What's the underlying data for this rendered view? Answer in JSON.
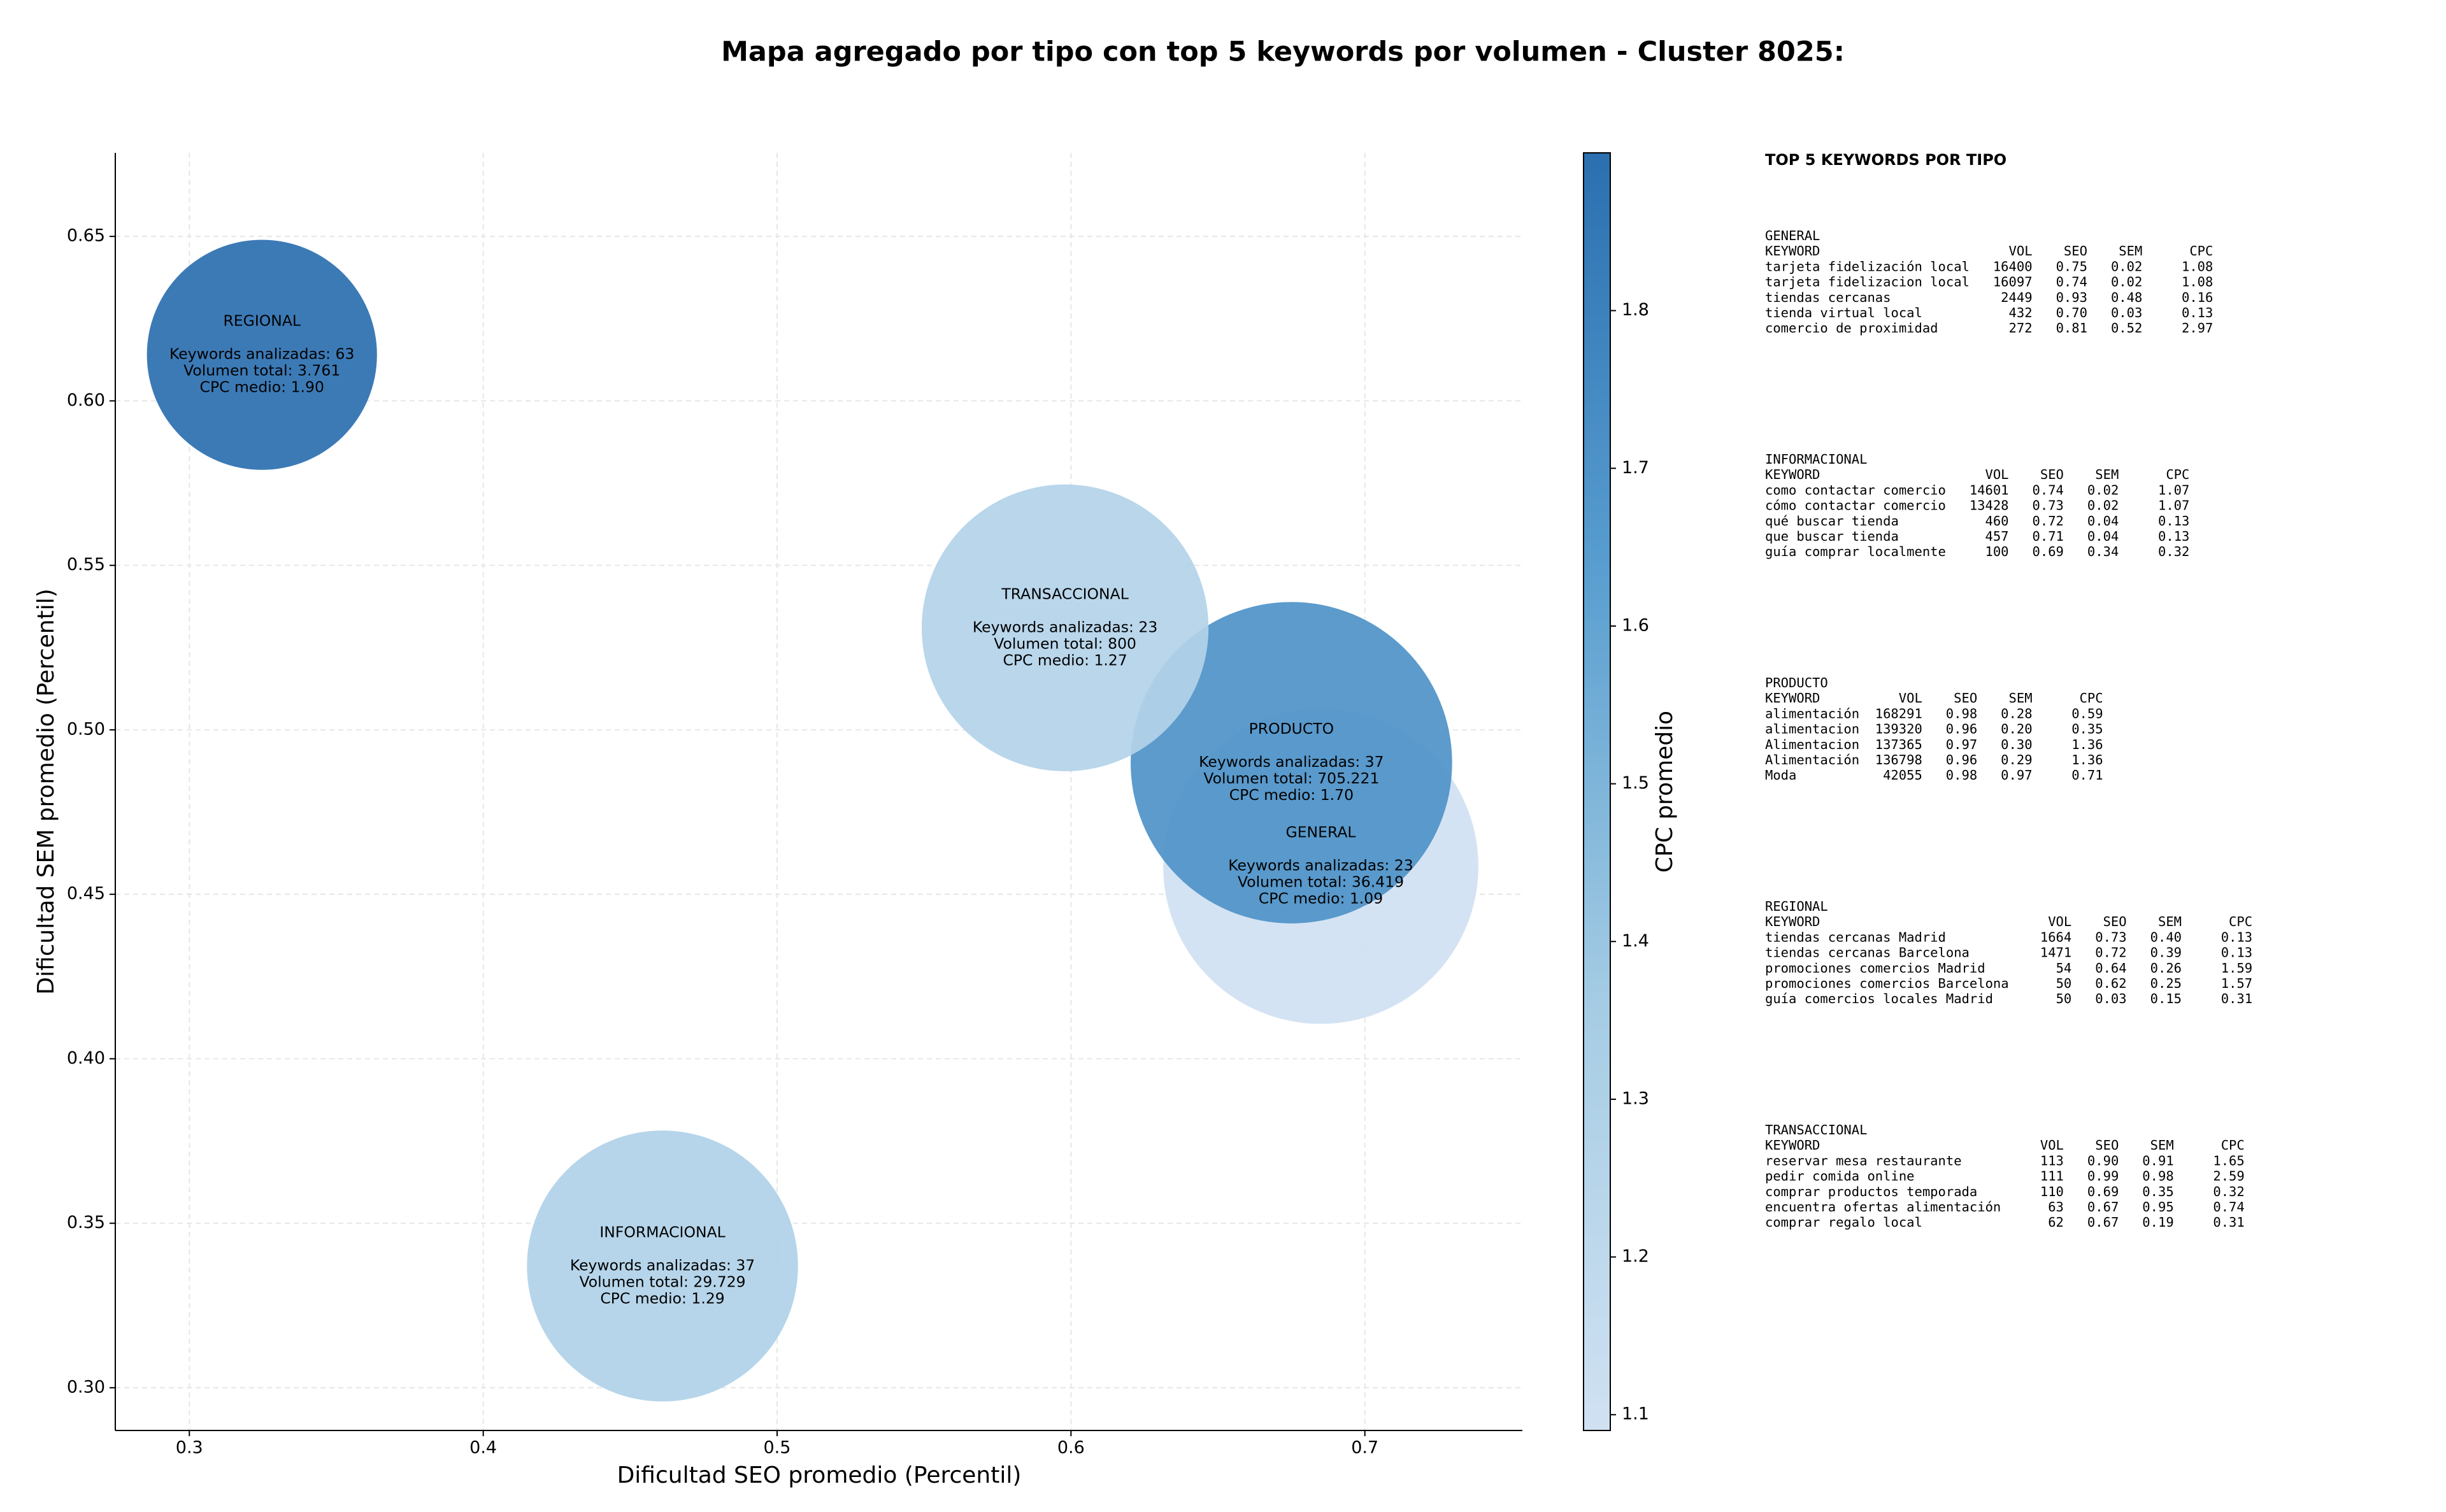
{
  "chart_data": {
    "type": "bubble",
    "title": "Mapa agregado por tipo con top 5 keywords por volumen - Cluster 8025:",
    "x_label": "Dificultad SEO promedio (Percentil)",
    "y_label": "Dificultad SEM promedio (Percentil)",
    "colorbar_label": "CPC promedio",
    "categories": [
      "GENERAL",
      "INFORMACIONAL",
      "PRODUCTO",
      "REGIONAL",
      "TRANSACCIONAL"
    ],
    "x": [
      0.685,
      0.461,
      0.675,
      0.3247,
      0.598
    ],
    "values": [
      0.4585,
      0.337,
      0.49,
      0.614,
      0.531
    ],
    "sizes": [
      100,
      86,
      102,
      73,
      91
    ],
    "color_values": [
      1.09,
      1.29,
      1.7,
      1.9,
      1.27
    ],
    "annotations": [
      [
        "Keywords analizadas: 23",
        "Volumen total: 36.419",
        "CPC medio: 1.09"
      ],
      [
        "Keywords analizadas: 37",
        "Volumen total: 29.729",
        "CPC medio: 1.29"
      ],
      [
        "Keywords analizadas: 37",
        "Volumen total: 705.221",
        "CPC medio: 1.70"
      ],
      [
        "Keywords analizadas: 63",
        "Volumen total: 3.761",
        "CPC medio: 1.90"
      ],
      [
        "Keywords analizadas: 23",
        "Volumen total: 800",
        "CPC medio: 1.27"
      ]
    ],
    "colormap": [
      "#d0e1f2",
      "#a5cce4",
      "#5a9fd0",
      "#2b6fb0"
    ],
    "xlim": [
      0.2748,
      0.7536
    ],
    "ylim": [
      0.287,
      0.6754
    ],
    "clim": [
      1.09,
      1.9
    ],
    "xticks": [
      0.3,
      0.4,
      0.5,
      0.6,
      0.7
    ],
    "yticks": [
      {
        "value": 0.3,
        "label": "0.30"
      },
      0.35,
      {
        "value": 0.4,
        "label": "0.40"
      },
      0.45,
      {
        "value": 0.5,
        "label": "0.50"
      },
      0.55,
      {
        "value": 0.6,
        "label": "0.60"
      },
      0.65
    ],
    "cticks": [
      1.1,
      1.2,
      1.3,
      1.4,
      1.5,
      1.6,
      1.7,
      1.8
    ],
    "grid": true
  },
  "panel": {
    "title": "TOP 5 KEYWORDS POR TIPO",
    "header": [
      "KEYWORD",
      "VOL",
      "SEO",
      "SEM",
      "CPC"
    ],
    "sections": [
      {
        "name": "GENERAL",
        "rows": [
          [
            "tarjeta fidelización local",
            "16400",
            "0.75",
            "0.02",
            "1.08"
          ],
          [
            "tarjeta fidelizacion local",
            "16097",
            "0.74",
            "0.02",
            "1.08"
          ],
          [
            "tiendas cercanas",
            "2449",
            "0.93",
            "0.48",
            "0.16"
          ],
          [
            "tienda virtual local",
            "432",
            "0.70",
            "0.03",
            "0.13"
          ],
          [
            "comercio de proximidad",
            "272",
            "0.81",
            "0.52",
            "2.97"
          ]
        ]
      },
      {
        "name": "INFORMACIONAL",
        "rows": [
          [
            "como contactar comercio",
            "14601",
            "0.74",
            "0.02",
            "1.07"
          ],
          [
            "cómo contactar comercio",
            "13428",
            "0.73",
            "0.02",
            "1.07"
          ],
          [
            "qué buscar tienda",
            "460",
            "0.72",
            "0.04",
            "0.13"
          ],
          [
            "que buscar tienda",
            "457",
            "0.71",
            "0.04",
            "0.13"
          ],
          [
            "guía comprar localmente",
            "100",
            "0.69",
            "0.34",
            "0.32"
          ]
        ]
      },
      {
        "name": "PRODUCTO",
        "rows": [
          [
            "alimentación",
            "168291",
            "0.98",
            "0.28",
            "0.59"
          ],
          [
            "alimentacion",
            "139320",
            "0.96",
            "0.20",
            "0.35"
          ],
          [
            "Alimentacion",
            "137365",
            "0.97",
            "0.30",
            "1.36"
          ],
          [
            "Alimentación",
            "136798",
            "0.96",
            "0.29",
            "1.36"
          ],
          [
            "Moda",
            "42055",
            "0.98",
            "0.97",
            "0.71"
          ]
        ]
      },
      {
        "name": "REGIONAL",
        "rows": [
          [
            "tiendas cercanas Madrid",
            "1664",
            "0.73",
            "0.40",
            "0.13"
          ],
          [
            "tiendas cercanas Barcelona",
            "1471",
            "0.72",
            "0.39",
            "0.13"
          ],
          [
            "promociones comercios Madrid",
            "54",
            "0.64",
            "0.26",
            "1.59"
          ],
          [
            "promociones comercios Barcelona",
            "50",
            "0.62",
            "0.25",
            "1.57"
          ],
          [
            "guía comercios locales Madrid",
            "50",
            "0.03",
            "0.15",
            "0.31"
          ]
        ]
      },
      {
        "name": "TRANSACCIONAL",
        "rows": [
          [
            "reservar mesa restaurante",
            "113",
            "0.90",
            "0.91",
            "1.65"
          ],
          [
            "pedir comida online",
            "111",
            "0.99",
            "0.98",
            "2.59"
          ],
          [
            "comprar productos temporada",
            "110",
            "0.69",
            "0.35",
            "0.32"
          ],
          [
            "encuentra ofertas alimentación",
            "63",
            "0.67",
            "0.95",
            "0.74"
          ],
          [
            "comprar regalo local",
            "62",
            "0.67",
            "0.19",
            "0.31"
          ]
        ]
      }
    ]
  }
}
